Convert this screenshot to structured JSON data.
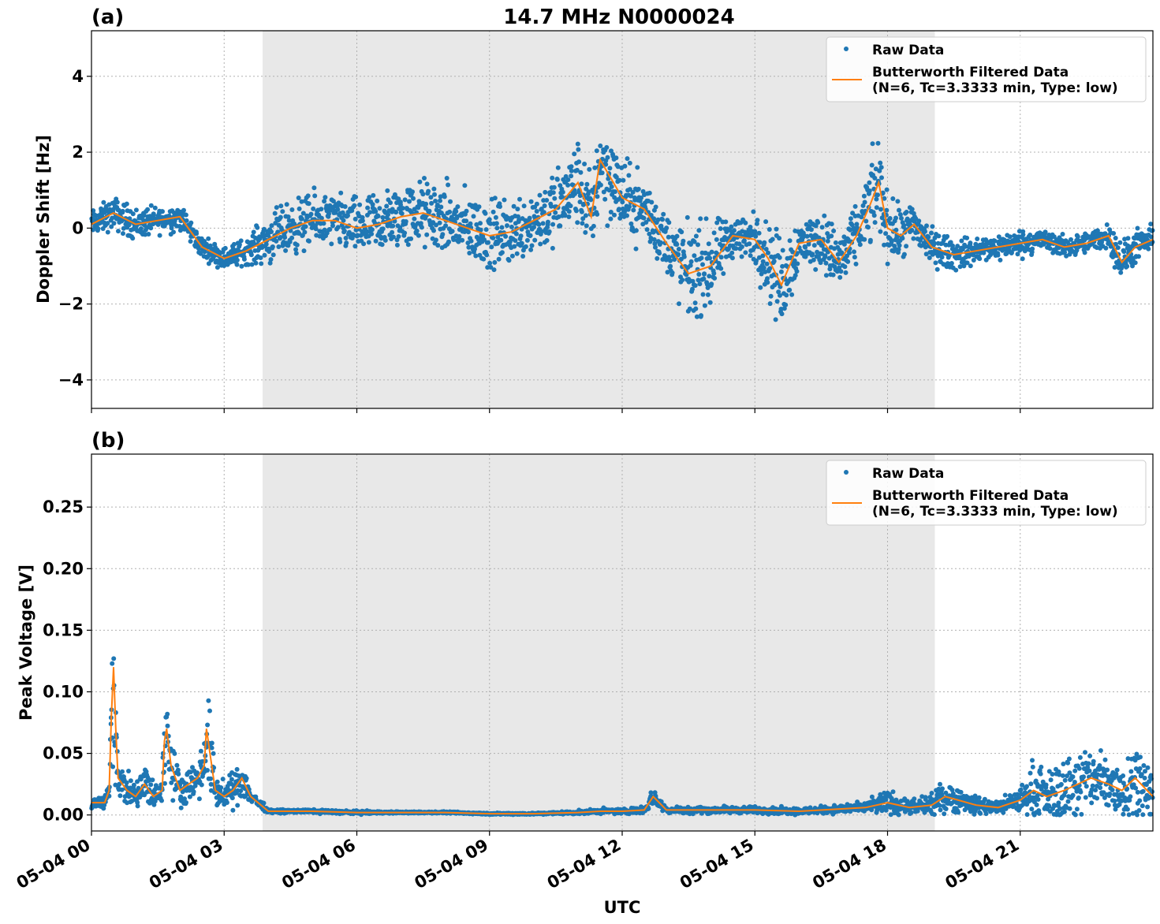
{
  "figure": {
    "title": "14.7 MHz N0000024",
    "xlabel": "UTC",
    "x_tick_labels": [
      "05-04 00",
      "05-04 03",
      "05-04 06",
      "05-04 09",
      "05-04 12",
      "05-04 15",
      "05-04 18",
      "05-04 21"
    ],
    "colors": {
      "raw": "#1f77b4",
      "filtered": "#ff7f0e",
      "shade": "#e8e8e8",
      "grid": "#b0b0b0"
    }
  },
  "legend": {
    "raw_label": "Raw Data",
    "filtered_label_line1": "Butterworth Filtered Data",
    "filtered_label_line2": "(N=6, Tc=3.3333 min, Type: low)",
    "placement": "top-right"
  },
  "chart_data": [
    {
      "type": "scatter",
      "panel_label": "(a)",
      "ylabel": "Doppler Shift [Hz]",
      "xlim": [
        0,
        24
      ],
      "ylim": [
        -4.75,
        5.2
      ],
      "x_ticks": [
        0,
        3,
        6,
        9,
        12,
        15,
        18,
        21
      ],
      "y_ticks": [
        -4,
        -2,
        0,
        2,
        4
      ],
      "y_tick_labels": [
        "−4",
        "−2",
        "0",
        "2",
        "4"
      ],
      "grid": true,
      "shaded_interval_hours": [
        3.87,
        19.07
      ],
      "series": [
        {
          "name": "Raw Data",
          "style": "points",
          "hours": [
            0,
            0.5,
            1.0,
            1.5,
            2.0,
            2.5,
            3.0,
            3.5,
            4.0,
            4.5,
            5.0,
            5.5,
            6.0,
            6.5,
            7.0,
            7.5,
            8.0,
            8.5,
            9.0,
            9.5,
            10.0,
            10.5,
            11.0,
            11.3,
            11.5,
            11.7,
            12.0,
            12.5,
            13.0,
            13.5,
            14.0,
            14.5,
            15.0,
            15.3,
            15.6,
            16.0,
            16.5,
            16.9,
            17.3,
            17.6,
            17.8,
            18.0,
            18.3,
            18.6,
            19.0,
            19.5,
            20.0,
            20.5,
            21.0,
            21.5,
            22.0,
            22.5,
            23.0,
            23.3,
            23.6,
            24.0
          ],
          "mean": [
            0.1,
            0.4,
            0.1,
            0.2,
            0.3,
            -0.5,
            -0.8,
            -0.6,
            -0.3,
            0.0,
            0.2,
            0.2,
            0.0,
            0.1,
            0.3,
            0.4,
            0.2,
            0.0,
            -0.2,
            -0.1,
            0.2,
            0.5,
            1.2,
            0.3,
            1.8,
            1.4,
            0.8,
            0.5,
            -0.4,
            -1.2,
            -1.0,
            -0.2,
            -0.3,
            -0.8,
            -1.5,
            -0.4,
            -0.3,
            -0.9,
            -0.2,
            0.6,
            1.2,
            0.0,
            -0.2,
            0.1,
            -0.5,
            -0.7,
            -0.6,
            -0.5,
            -0.4,
            -0.3,
            -0.5,
            -0.4,
            -0.2,
            -0.9,
            -0.5,
            -0.3
          ],
          "spread": [
            0.5,
            0.6,
            0.6,
            0.5,
            0.5,
            0.4,
            0.4,
            0.5,
            0.9,
            1.0,
            1.0,
            1.0,
            1.1,
            1.2,
            1.2,
            1.3,
            1.3,
            1.3,
            1.3,
            1.2,
            1.3,
            1.4,
            1.6,
            1.5,
            1.8,
            1.8,
            1.4,
            1.3,
            1.2,
            1.8,
            1.6,
            0.8,
            1.0,
            1.5,
            1.8,
            1.0,
            1.0,
            1.3,
            1.0,
            1.6,
            1.8,
            1.2,
            1.0,
            0.9,
            0.7,
            0.6,
            0.5,
            0.5,
            0.5,
            0.4,
            0.4,
            0.4,
            0.5,
            0.8,
            0.6,
            0.5
          ]
        },
        {
          "name": "Butterworth Filtered Data",
          "style": "line",
          "hours": [
            0,
            0.5,
            1.0,
            1.5,
            2.0,
            2.5,
            3.0,
            3.5,
            4.0,
            4.5,
            5.0,
            5.5,
            6.0,
            6.5,
            7.0,
            7.5,
            8.0,
            8.5,
            9.0,
            9.5,
            10.0,
            10.5,
            11.0,
            11.3,
            11.5,
            11.7,
            12.0,
            12.5,
            13.0,
            13.5,
            14.0,
            14.5,
            15.0,
            15.3,
            15.6,
            16.0,
            16.5,
            16.9,
            17.3,
            17.6,
            17.8,
            18.0,
            18.3,
            18.6,
            19.0,
            19.5,
            20.0,
            20.5,
            21.0,
            21.5,
            22.0,
            22.5,
            23.0,
            23.3,
            23.6,
            24.0
          ],
          "values": [
            0.1,
            0.4,
            0.1,
            0.2,
            0.3,
            -0.5,
            -0.8,
            -0.6,
            -0.3,
            0.0,
            0.2,
            0.2,
            0.0,
            0.1,
            0.3,
            0.4,
            0.2,
            0.0,
            -0.2,
            -0.1,
            0.2,
            0.5,
            1.2,
            0.3,
            1.8,
            1.4,
            0.8,
            0.5,
            -0.4,
            -1.2,
            -1.0,
            -0.2,
            -0.3,
            -0.8,
            -1.5,
            -0.4,
            -0.3,
            -0.9,
            -0.2,
            0.6,
            1.2,
            0.0,
            -0.2,
            0.1,
            -0.5,
            -0.7,
            -0.6,
            -0.5,
            -0.4,
            -0.3,
            -0.5,
            -0.4,
            -0.2,
            -0.9,
            -0.5,
            -0.3
          ]
        }
      ]
    },
    {
      "type": "scatter",
      "panel_label": "(b)",
      "ylabel": "Peak Voltage [V]",
      "xlim": [
        0,
        24
      ],
      "ylim": [
        -0.013,
        0.293
      ],
      "x_ticks": [
        0,
        3,
        6,
        9,
        12,
        15,
        18,
        21
      ],
      "y_ticks": [
        0.0,
        0.05,
        0.1,
        0.15,
        0.2,
        0.25
      ],
      "y_tick_labels": [
        "0.00",
        "0.05",
        "0.10",
        "0.15",
        "0.20",
        "0.25"
      ],
      "grid": true,
      "shaded_interval_hours": [
        3.87,
        19.07
      ],
      "series": [
        {
          "name": "Raw Data",
          "style": "points",
          "hours": [
            0,
            0.3,
            0.4,
            0.45,
            0.5,
            0.55,
            0.6,
            0.8,
            1.0,
            1.2,
            1.4,
            1.6,
            1.65,
            1.7,
            1.8,
            2.0,
            2.2,
            2.4,
            2.55,
            2.6,
            2.8,
            3.0,
            3.2,
            3.4,
            3.6,
            4.0,
            5.0,
            6.0,
            7.0,
            8.0,
            9.0,
            10.0,
            11.0,
            11.5,
            12.0,
            12.5,
            12.7,
            13.0,
            14.0,
            15.0,
            16.0,
            17.0,
            17.5,
            18.0,
            18.5,
            19.0,
            19.3,
            19.6,
            20.0,
            20.5,
            21.0,
            21.3,
            21.6,
            22.0,
            22.3,
            22.6,
            23.0,
            23.3,
            23.6,
            24.0
          ],
          "mean": [
            0.01,
            0.01,
            0.02,
            0.08,
            0.12,
            0.07,
            0.03,
            0.02,
            0.015,
            0.025,
            0.015,
            0.02,
            0.06,
            0.07,
            0.04,
            0.02,
            0.025,
            0.03,
            0.04,
            0.07,
            0.02,
            0.015,
            0.02,
            0.03,
            0.015,
            0.003,
            0.003,
            0.002,
            0.002,
            0.002,
            0.001,
            0.001,
            0.002,
            0.003,
            0.003,
            0.004,
            0.015,
            0.004,
            0.004,
            0.004,
            0.003,
            0.005,
            0.006,
            0.01,
            0.006,
            0.008,
            0.015,
            0.012,
            0.008,
            0.006,
            0.012,
            0.02,
            0.015,
            0.02,
            0.025,
            0.03,
            0.025,
            0.02,
            0.03,
            0.015
          ],
          "spread": [
            0.008,
            0.008,
            0.01,
            0.06,
            0.15,
            0.06,
            0.02,
            0.02,
            0.015,
            0.03,
            0.015,
            0.02,
            0.05,
            0.06,
            0.03,
            0.02,
            0.02,
            0.025,
            0.03,
            0.07,
            0.02,
            0.015,
            0.02,
            0.025,
            0.01,
            0.002,
            0.002,
            0.002,
            0.001,
            0.001,
            0.001,
            0.001,
            0.002,
            0.003,
            0.003,
            0.004,
            0.01,
            0.004,
            0.004,
            0.004,
            0.004,
            0.005,
            0.006,
            0.015,
            0.008,
            0.012,
            0.02,
            0.015,
            0.01,
            0.008,
            0.015,
            0.035,
            0.025,
            0.04,
            0.045,
            0.035,
            0.04,
            0.035,
            0.045,
            0.03
          ]
        },
        {
          "name": "Butterworth Filtered Data",
          "style": "line",
          "hours": [
            0,
            0.3,
            0.4,
            0.45,
            0.5,
            0.55,
            0.6,
            0.8,
            1.0,
            1.2,
            1.4,
            1.6,
            1.65,
            1.7,
            1.8,
            2.0,
            2.2,
            2.4,
            2.55,
            2.6,
            2.8,
            3.0,
            3.2,
            3.4,
            3.6,
            4.0,
            5.0,
            6.0,
            7.0,
            8.0,
            9.0,
            10.0,
            11.0,
            11.5,
            12.0,
            12.5,
            12.7,
            13.0,
            14.0,
            15.0,
            16.0,
            17.0,
            17.5,
            18.0,
            18.5,
            19.0,
            19.3,
            19.6,
            20.0,
            20.5,
            21.0,
            21.3,
            21.6,
            22.0,
            22.3,
            22.6,
            23.0,
            23.3,
            23.6,
            24.0
          ],
          "values": [
            0.01,
            0.01,
            0.02,
            0.08,
            0.12,
            0.07,
            0.03,
            0.02,
            0.015,
            0.025,
            0.015,
            0.02,
            0.06,
            0.07,
            0.04,
            0.02,
            0.025,
            0.03,
            0.04,
            0.07,
            0.02,
            0.015,
            0.02,
            0.03,
            0.015,
            0.003,
            0.003,
            0.002,
            0.002,
            0.002,
            0.001,
            0.001,
            0.002,
            0.003,
            0.003,
            0.004,
            0.015,
            0.004,
            0.004,
            0.004,
            0.003,
            0.005,
            0.006,
            0.01,
            0.006,
            0.008,
            0.015,
            0.012,
            0.008,
            0.006,
            0.012,
            0.02,
            0.015,
            0.02,
            0.025,
            0.03,
            0.025,
            0.02,
            0.03,
            0.015
          ]
        }
      ]
    }
  ]
}
